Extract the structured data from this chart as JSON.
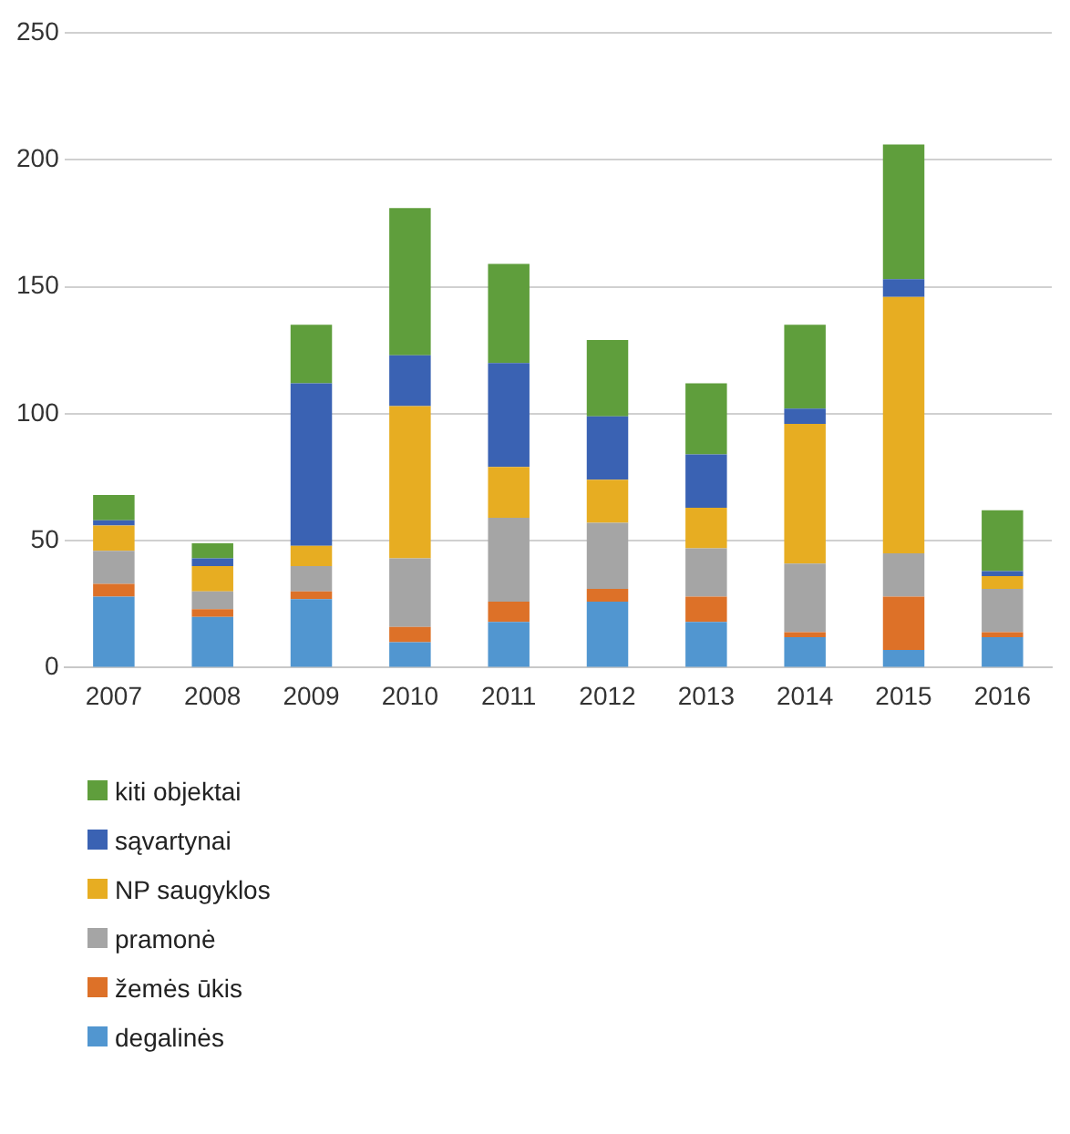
{
  "chart_data": {
    "type": "bar",
    "stacked": true,
    "categories": [
      "2007",
      "2008",
      "2009",
      "2010",
      "2011",
      "2012",
      "2013",
      "2014",
      "2015",
      "2016"
    ],
    "series": [
      {
        "name": "degalinės",
        "color": "#5196d0",
        "values": [
          28,
          20,
          27,
          10,
          18,
          26,
          18,
          12,
          7,
          12
        ]
      },
      {
        "name": "žemės ūkis",
        "color": "#dd7128",
        "values": [
          5,
          3,
          3,
          6,
          8,
          5,
          10,
          2,
          21,
          2
        ]
      },
      {
        "name": "pramonė",
        "color": "#a5a5a5",
        "values": [
          13,
          7,
          10,
          27,
          33,
          26,
          19,
          27,
          17,
          17
        ]
      },
      {
        "name": "NP saugyklos",
        "color": "#e7ad22",
        "values": [
          10,
          10,
          8,
          60,
          20,
          17,
          16,
          55,
          101,
          5
        ]
      },
      {
        "name": "sąvartynai",
        "color": "#3a62b3",
        "values": [
          2,
          3,
          64,
          20,
          41,
          25,
          21,
          6,
          7,
          2
        ]
      },
      {
        "name": "kiti objektai",
        "color": "#5f9e3c",
        "values": [
          10,
          6,
          23,
          58,
          39,
          30,
          28,
          33,
          53,
          24
        ]
      }
    ],
    "ylim": [
      0,
      250
    ],
    "yticks": [
      0,
      50,
      100,
      150,
      200,
      250
    ],
    "grid": "y",
    "legend": "bottom"
  }
}
